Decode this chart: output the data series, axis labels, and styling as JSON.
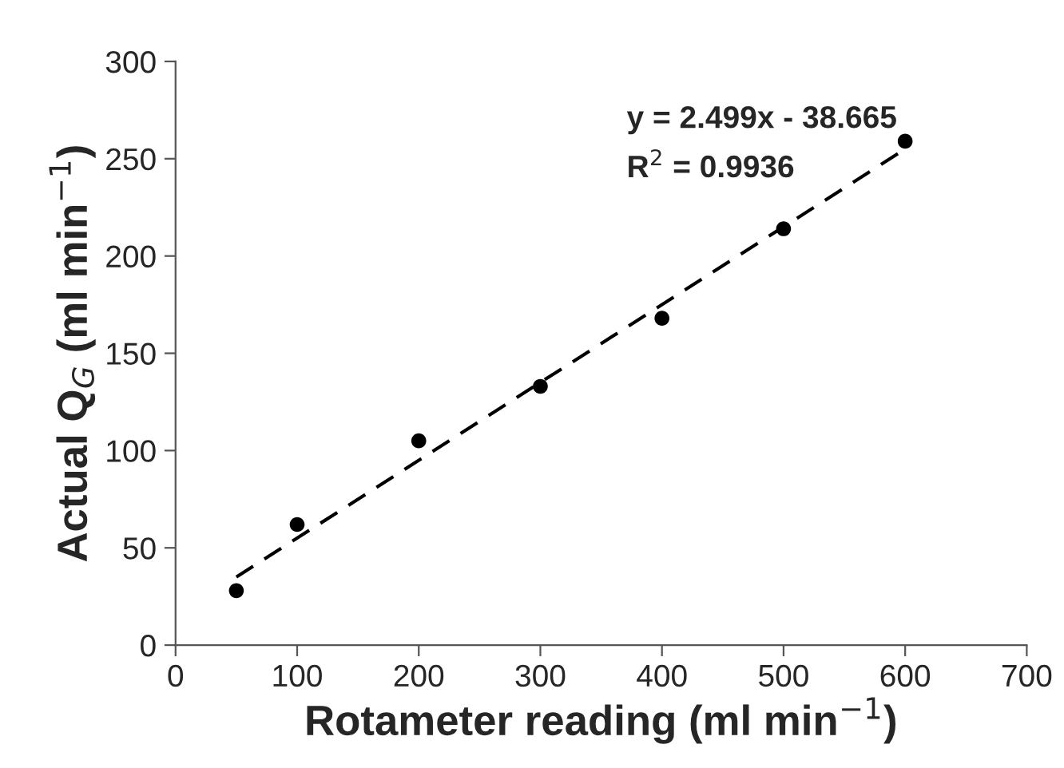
{
  "chart_data": {
    "type": "scatter",
    "xlabel": "Rotameter reading (ml min$^{−1}$)",
    "ylabel": "Actual Q$_{G}$ (ml min$^{−1}$)",
    "series": [
      {
        "color": "#000000",
        "marker": "circle",
        "x": [
          50,
          100,
          200,
          300,
          400,
          500,
          600
        ],
        "values": [
          28,
          62,
          105,
          133,
          168,
          214,
          259
        ]
      },
      {
        "type": "line",
        "color": "#000000",
        "line_style": "dashed",
        "marker": "none",
        "x": [
          50,
          600
        ],
        "values": [
          35,
          255
        ]
      }
    ],
    "annotations": [
      "y = 2.499x - 38.665",
      "R$^{2}$ = 0.9936"
    ],
    "xlim": [
      0,
      700
    ],
    "xticks": [
      0,
      100,
      200,
      300,
      400,
      500,
      600,
      700
    ],
    "ylim": [
      0,
      300
    ],
    "yticks": [
      0,
      50,
      100,
      150,
      200,
      250,
      300
    ],
    "grid": false,
    "legend": false
  }
}
